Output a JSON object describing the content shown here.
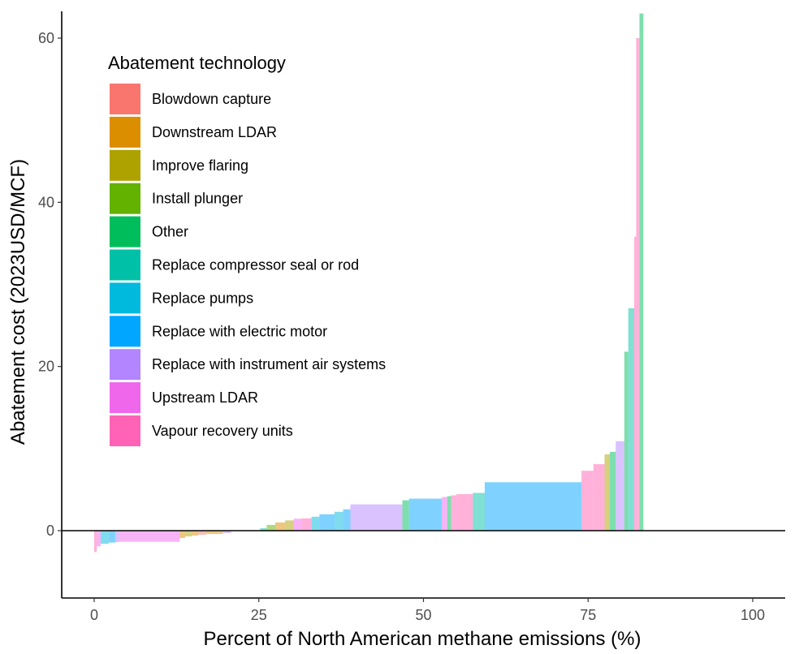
{
  "chart_data": {
    "type": "bar",
    "subtype": "marginal-abatement-cost-curve",
    "xlabel": "Percent of North American methane emissions (%)",
    "ylabel": "Abatement cost (2023USD/MCF)",
    "xlim": [
      -10,
      105
    ],
    "ylim": [
      -8,
      63
    ],
    "xticks": [
      0,
      25,
      50,
      75,
      100
    ],
    "yticks": [
      0,
      20,
      40,
      60
    ],
    "grid": false,
    "legend": {
      "title": "Abatement technology",
      "placement": "top-left",
      "entries": [
        {
          "name": "Blowdown capture",
          "color": "#F8766D"
        },
        {
          "name": "Downstream LDAR",
          "color": "#DB8E00"
        },
        {
          "name": "Improve flaring",
          "color": "#AEA200"
        },
        {
          "name": "Install plunger",
          "color": "#64B200"
        },
        {
          "name": "Other",
          "color": "#00BD5C"
        },
        {
          "name": "Replace compressor seal or rod",
          "color": "#00C1A7"
        },
        {
          "name": "Replace pumps",
          "color": "#00BADE"
        },
        {
          "name": "Replace with electric motor",
          "color": "#00A6FF"
        },
        {
          "name": "Replace with instrument air systems",
          "color": "#B385FF"
        },
        {
          "name": "Upstream LDAR",
          "color": "#EF67EB"
        },
        {
          "name": "Vapour recovery units",
          "color": "#FF63B6"
        }
      ]
    },
    "bar_opacity": 0.5,
    "segments": [
      {
        "x0": 0.0,
        "x1": 0.4,
        "y": -2.6,
        "tech": "Vapour recovery units"
      },
      {
        "x0": 0.4,
        "x1": 1.0,
        "y": -1.9,
        "tech": "Upstream LDAR"
      },
      {
        "x0": 1.0,
        "x1": 2.2,
        "y": -1.6,
        "tech": "Replace pumps"
      },
      {
        "x0": 2.2,
        "x1": 3.2,
        "y": -1.45,
        "tech": "Replace with electric motor"
      },
      {
        "x0": 3.2,
        "x1": 3.8,
        "y": -1.4,
        "tech": "Replace with instrument air systems"
      },
      {
        "x0": 3.8,
        "x1": 13.0,
        "y": -1.35,
        "tech": "Upstream LDAR"
      },
      {
        "x0": 13.0,
        "x1": 13.8,
        "y": -0.9,
        "tech": "Downstream LDAR"
      },
      {
        "x0": 13.8,
        "x1": 14.8,
        "y": -0.7,
        "tech": "Improve flaring"
      },
      {
        "x0": 14.8,
        "x1": 15.8,
        "y": -0.6,
        "tech": "Downstream LDAR"
      },
      {
        "x0": 15.8,
        "x1": 17.0,
        "y": -0.5,
        "tech": "Blowdown capture"
      },
      {
        "x0": 17.0,
        "x1": 19.5,
        "y": -0.4,
        "tech": "Downstream LDAR"
      },
      {
        "x0": 19.5,
        "x1": 20.8,
        "y": -0.3,
        "tech": "Replace with instrument air systems"
      },
      {
        "x0": 25.2,
        "x1": 26.2,
        "y": 0.3,
        "tech": "Replace compressor seal or rod"
      },
      {
        "x0": 26.2,
        "x1": 27.5,
        "y": 0.7,
        "tech": "Install plunger"
      },
      {
        "x0": 27.5,
        "x1": 29.0,
        "y": 1.0,
        "tech": "Downstream LDAR"
      },
      {
        "x0": 29.0,
        "x1": 30.3,
        "y": 1.25,
        "tech": "Improve flaring"
      },
      {
        "x0": 30.3,
        "x1": 31.5,
        "y": 1.45,
        "tech": "Upstream LDAR"
      },
      {
        "x0": 31.5,
        "x1": 33.0,
        "y": 1.5,
        "tech": "Vapour recovery units"
      },
      {
        "x0": 33.0,
        "x1": 34.2,
        "y": 1.7,
        "tech": "Replace pumps"
      },
      {
        "x0": 34.2,
        "x1": 36.5,
        "y": 2.0,
        "tech": "Replace with electric motor"
      },
      {
        "x0": 36.5,
        "x1": 37.8,
        "y": 2.3,
        "tech": "Replace pumps"
      },
      {
        "x0": 37.8,
        "x1": 38.9,
        "y": 2.6,
        "tech": "Replace with electric motor"
      },
      {
        "x0": 38.9,
        "x1": 46.8,
        "y": 3.2,
        "tech": "Replace with instrument air systems"
      },
      {
        "x0": 46.8,
        "x1": 47.8,
        "y": 3.7,
        "tech": "Other"
      },
      {
        "x0": 47.8,
        "x1": 52.8,
        "y": 3.9,
        "tech": "Replace with electric motor"
      },
      {
        "x0": 52.8,
        "x1": 53.6,
        "y": 4.1,
        "tech": "Upstream LDAR"
      },
      {
        "x0": 53.6,
        "x1": 54.2,
        "y": 4.2,
        "tech": "Other"
      },
      {
        "x0": 54.2,
        "x1": 55.0,
        "y": 4.3,
        "tech": "Vapour recovery units"
      },
      {
        "x0": 55.0,
        "x1": 57.5,
        "y": 4.45,
        "tech": "Vapour recovery units"
      },
      {
        "x0": 57.5,
        "x1": 59.3,
        "y": 4.6,
        "tech": "Replace compressor seal or rod"
      },
      {
        "x0": 59.3,
        "x1": 74.0,
        "y": 5.9,
        "tech": "Replace with electric motor"
      },
      {
        "x0": 74.0,
        "x1": 75.8,
        "y": 7.3,
        "tech": "Vapour recovery units"
      },
      {
        "x0": 75.8,
        "x1": 77.5,
        "y": 8.1,
        "tech": "Vapour recovery units"
      },
      {
        "x0": 77.5,
        "x1": 78.3,
        "y": 9.3,
        "tech": "Improve flaring"
      },
      {
        "x0": 78.3,
        "x1": 79.2,
        "y": 9.6,
        "tech": "Other"
      },
      {
        "x0": 79.2,
        "x1": 80.5,
        "y": 10.9,
        "tech": "Replace with instrument air systems"
      },
      {
        "x0": 80.5,
        "x1": 81.1,
        "y": 21.8,
        "tech": "Other"
      },
      {
        "x0": 81.1,
        "x1": 82.0,
        "y": 27.1,
        "tech": "Replace compressor seal or rod"
      },
      {
        "x0": 82.0,
        "x1": 82.3,
        "y": 35.8,
        "tech": "Vapour recovery units"
      },
      {
        "x0": 82.3,
        "x1": 82.8,
        "y": 60.0,
        "tech": "Vapour recovery units"
      },
      {
        "x0": 82.8,
        "x1": 83.4,
        "y": 63.0,
        "tech": "Other"
      }
    ]
  }
}
